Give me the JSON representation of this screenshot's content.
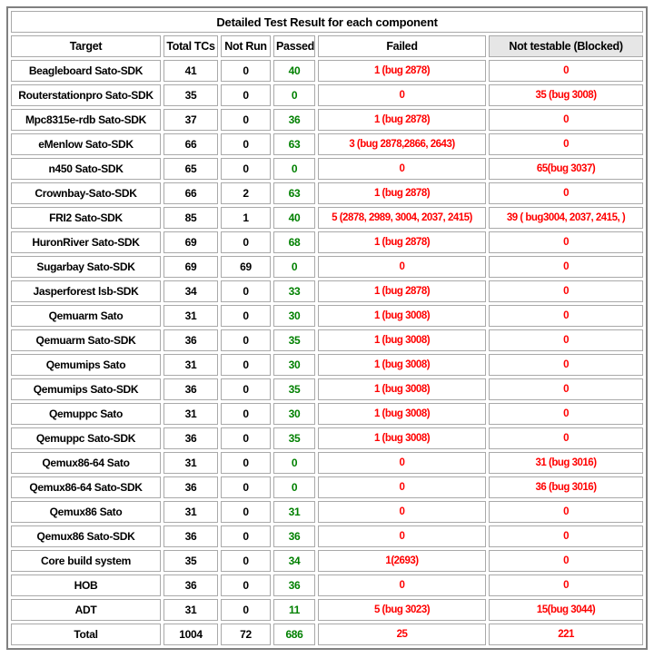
{
  "title": "Detailed Test Result for each component",
  "colors": {
    "passed_text": "#008000",
    "failed_text": "#ff0000",
    "blocked_text": "#ff0000",
    "header_blocked_bg": "#e6e6e6",
    "cell_border": "#a9a9a9",
    "outer_border": "#808080"
  },
  "table": {
    "headers": [
      "Target",
      "Total TCs",
      "Not Run",
      "Passed",
      "Failed",
      "Not testable (Blocked)"
    ],
    "rows": [
      [
        "Beagleboard Sato-SDK",
        "41",
        "0",
        "40",
        "1 (bug 2878)",
        "0"
      ],
      [
        "Routerstationpro Sato-SDK",
        "35",
        "0",
        "0",
        "0",
        "35 (bug 3008)"
      ],
      [
        "Mpc8315e-rdb Sato-SDK",
        "37",
        "0",
        "36",
        "1 (bug 2878)",
        "0"
      ],
      [
        "eMenlow Sato-SDK",
        "66",
        "0",
        "63",
        "3 (bug 2878,2866, 2643)",
        "0"
      ],
      [
        "n450 Sato-SDK",
        "65",
        "0",
        "0",
        "0",
        "65(bug 3037)"
      ],
      [
        "Crownbay-Sato-SDK",
        "66",
        "2",
        "63",
        "1 (bug 2878)",
        "0"
      ],
      [
        "FRI2 Sato-SDK",
        "85",
        "1",
        "40",
        "5 (2878, 2989, 3004, 2037, 2415)",
        "39 ( bug3004, 2037, 2415, )"
      ],
      [
        "HuronRiver Sato-SDK",
        "69",
        "0",
        "68",
        "1 (bug 2878)",
        "0"
      ],
      [
        "Sugarbay Sato-SDK",
        "69",
        "69",
        "0",
        "0",
        "0"
      ],
      [
        "Jasperforest lsb-SDK",
        "34",
        "0",
        "33",
        "1 (bug 2878)",
        "0"
      ],
      [
        "Qemuarm Sato",
        "31",
        "0",
        "30",
        "1 (bug 3008)",
        "0"
      ],
      [
        "Qemuarm Sato-SDK",
        "36",
        "0",
        "35",
        "1 (bug 3008)",
        "0"
      ],
      [
        "Qemumips Sato",
        "31",
        "0",
        "30",
        "1 (bug 3008)",
        "0"
      ],
      [
        "Qemumips Sato-SDK",
        "36",
        "0",
        "35",
        "1 (bug 3008)",
        "0"
      ],
      [
        "Qemuppc Sato",
        "31",
        "0",
        "30",
        "1 (bug 3008)",
        "0"
      ],
      [
        "Qemuppc Sato-SDK",
        "36",
        "0",
        "35",
        "1 (bug 3008)",
        "0"
      ],
      [
        "Qemux86-64 Sato",
        "31",
        "0",
        "0",
        "0",
        "31 (bug 3016)"
      ],
      [
        "Qemux86-64 Sato-SDK",
        "36",
        "0",
        "0",
        "0",
        "36 (bug 3016)"
      ],
      [
        "Qemux86 Sato",
        "31",
        "0",
        "31",
        "0",
        "0"
      ],
      [
        "Qemux86 Sato-SDK",
        "36",
        "0",
        "36",
        "0",
        "0"
      ],
      [
        "Core build system",
        "35",
        "0",
        "34",
        "1(2693)",
        "0"
      ],
      [
        "HOB",
        "36",
        "0",
        "36",
        "0",
        "0"
      ],
      [
        "ADT",
        "31",
        "0",
        "11",
        "5 (bug 3023)",
        "15(bug 3044)"
      ],
      [
        "Total",
        "1004",
        "72",
        "686",
        "25",
        "221"
      ]
    ]
  }
}
